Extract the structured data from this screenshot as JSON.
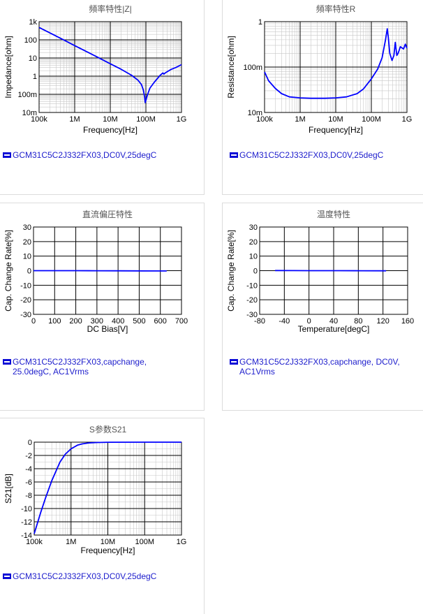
{
  "legend_color": "#1d1dcc",
  "line_color": "#0000ff",
  "panels": [
    {
      "title": "頻率特性|Z|",
      "legend": "GCM31C5C2J332FX03,DC0V,25degC"
    },
    {
      "title": "頻率特性R",
      "legend": "GCM31C5C2J332FX03,DC0V,25degC"
    },
    {
      "title": "直流偏圧特性",
      "legend": "GCM31C5C2J332FX03,capchange, 25.0degC, AC1Vrms"
    },
    {
      "title": "温度特性",
      "legend": "GCM31C5C2J332FX03,capchange, DC0V, AC1Vrms"
    },
    {
      "title": "S参数S21",
      "legend": "GCM31C5C2J332FX03,DC0V,25degC"
    }
  ],
  "chart_data": [
    {
      "type": "line",
      "title": "頻率特性|Z|",
      "xlabel": "Frequency[Hz]",
      "ylabel": "Impedance[ohm]",
      "xscale": "log",
      "yscale": "log",
      "xlim": [
        100000,
        1000000000
      ],
      "ylim": [
        0.01,
        1000
      ],
      "xticks": [
        100000,
        1000000,
        10000000,
        100000000,
        1000000000
      ],
      "xtick_labels": [
        "100k",
        "1M",
        "10M",
        "100M",
        "1G"
      ],
      "yticks": [
        0.01,
        0.1,
        1,
        10,
        100,
        1000
      ],
      "ytick_labels": [
        "10m",
        "100m",
        "1",
        "10",
        "100",
        "1k"
      ],
      "grid": true,
      "series": [
        {
          "x": [
            100000,
            200000,
            500000,
            1000000,
            2000000,
            5000000,
            10000000,
            20000000,
            40000000,
            60000000,
            75000000,
            85000000,
            92000000,
            96000000,
            110000000,
            130000000,
            170000000,
            250000000,
            300000000,
            320000000,
            350000000,
            500000000,
            700000000,
            1000000000
          ],
          "y": [
            480,
            240,
            97,
            48,
            24,
            9.7,
            4.8,
            2.4,
            1.1,
            0.6,
            0.35,
            0.17,
            0.07,
            0.035,
            0.09,
            0.22,
            0.45,
            1.1,
            1.5,
            1.3,
            1.5,
            2.3,
            3.0,
            4.3
          ]
        }
      ]
    },
    {
      "type": "line",
      "title": "頻率特性R",
      "xlabel": "Frequency[Hz]",
      "ylabel": "Resistance[ohm]",
      "xscale": "log",
      "yscale": "log",
      "xlim": [
        100000,
        1000000000
      ],
      "ylim": [
        0.01,
        1
      ],
      "xticks": [
        100000,
        1000000,
        10000000,
        100000000,
        1000000000
      ],
      "xtick_labels": [
        "100k",
        "1M",
        "10M",
        "100M",
        "1G"
      ],
      "yticks": [
        0.01,
        0.1,
        1
      ],
      "ytick_labels": [
        "10m",
        "100m",
        "1"
      ],
      "grid": true,
      "series": [
        {
          "x": [
            100000,
            130000,
            200000,
            300000,
            500000,
            1000000,
            2000000,
            5000000,
            10000000,
            20000000,
            40000000,
            60000000,
            100000000,
            150000000,
            200000000,
            250000000,
            280000000,
            300000000,
            330000000,
            380000000,
            430000000,
            470000000,
            520000000,
            560000000,
            600000000,
            650000000,
            700000000,
            800000000,
            900000000,
            1000000000
          ],
          "y": [
            0.078,
            0.05,
            0.034,
            0.026,
            0.022,
            0.021,
            0.0205,
            0.0205,
            0.021,
            0.022,
            0.026,
            0.033,
            0.055,
            0.09,
            0.16,
            0.4,
            0.7,
            0.45,
            0.2,
            0.14,
            0.18,
            0.35,
            0.18,
            0.2,
            0.23,
            0.28,
            0.27,
            0.25,
            0.32,
            0.26
          ]
        }
      ]
    },
    {
      "type": "line",
      "title": "直流偏圧特性",
      "xlabel": "DC Bias[V]",
      "ylabel": "Cap. Change Rate[%]",
      "xlim": [
        0,
        700
      ],
      "ylim": [
        -30,
        30
      ],
      "xticks": [
        0,
        100,
        200,
        300,
        400,
        500,
        600,
        700
      ],
      "yticks": [
        -30,
        -20,
        -10,
        0,
        10,
        20,
        30
      ],
      "grid": true,
      "series": [
        {
          "x": [
            0,
            100,
            200,
            300,
            400,
            500,
            600,
            630
          ],
          "y": [
            0,
            0,
            0,
            -0.05,
            -0.1,
            -0.15,
            -0.2,
            -0.2
          ]
        }
      ]
    },
    {
      "type": "line",
      "title": "温度特性",
      "xlabel": "Temperature[degC]",
      "ylabel": "Cap. Change Rate[%]",
      "xlim": [
        -80,
        160
      ],
      "ylim": [
        -30,
        30
      ],
      "xticks": [
        -80,
        -40,
        0,
        40,
        80,
        120,
        160
      ],
      "yticks": [
        -30,
        -20,
        -10,
        0,
        10,
        20,
        30
      ],
      "grid": true,
      "series": [
        {
          "x": [
            -55,
            -25,
            0,
            25,
            50,
            85,
            125
          ],
          "y": [
            0.1,
            0.05,
            0.02,
            0,
            -0.02,
            -0.05,
            -0.1
          ]
        }
      ]
    },
    {
      "type": "line",
      "title": "S参数S21",
      "xlabel": "Frequency[Hz]",
      "ylabel": "S21[dB]",
      "xscale": "log",
      "xlim": [
        100000,
        1000000000
      ],
      "ylim": [
        -14,
        0
      ],
      "xticks": [
        100000,
        1000000,
        10000000,
        100000000,
        1000000000
      ],
      "xtick_labels": [
        "100k",
        "1M",
        "10M",
        "100M",
        "1G"
      ],
      "yticks": [
        -14,
        -12,
        -10,
        -8,
        -6,
        -4,
        -2,
        0
      ],
      "grid": true,
      "series": [
        {
          "x": [
            100000,
            150000,
            200000,
            300000,
            500000,
            700000,
            1000000,
            1500000,
            2000000,
            3000000,
            5000000,
            10000000,
            100000000,
            1000000000
          ],
          "y": [
            -13.8,
            -10.6,
            -8.5,
            -5.8,
            -3.0,
            -1.8,
            -1.0,
            -0.45,
            -0.26,
            -0.12,
            -0.05,
            -0.01,
            0,
            0
          ]
        }
      ]
    }
  ]
}
